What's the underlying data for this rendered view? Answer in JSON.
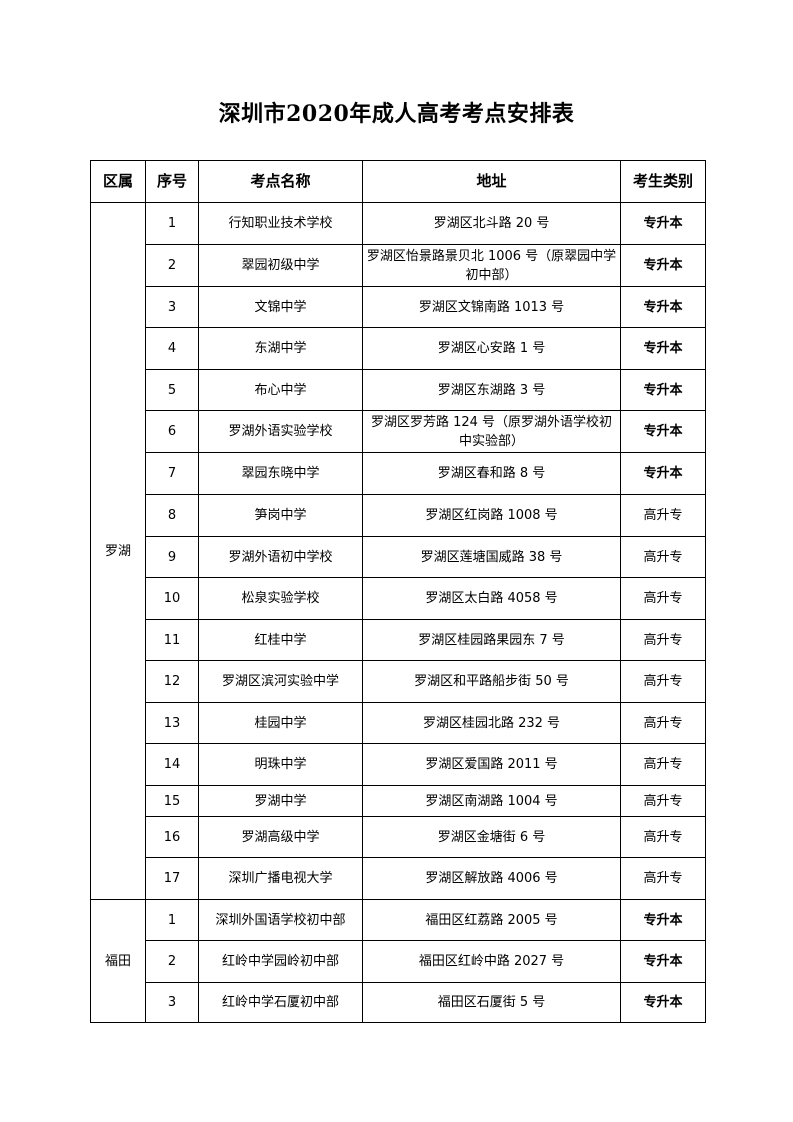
{
  "title": "深圳市2020年成人高考考点安排表",
  "headers": [
    "区属",
    "序号",
    "考点名称",
    "地址",
    "考生类别"
  ],
  "groups": [
    {
      "district": "罗湖",
      "rows": [
        {
          "no": "1",
          "name": "行知职业技术学校",
          "address": "罗湖区北斗路 20 号",
          "category": "专升本"
        },
        {
          "no": "2",
          "name": "翠园初级中学",
          "address": "罗湖区怡景路景贝北 1006 号（原翠园中学初中部）",
          "category": "专升本"
        },
        {
          "no": "3",
          "name": "文锦中学",
          "address": "罗湖区文锦南路 1013 号",
          "category": "专升本"
        },
        {
          "no": "4",
          "name": "东湖中学",
          "address": "罗湖区心安路 1 号",
          "category": "专升本"
        },
        {
          "no": "5",
          "name": "布心中学",
          "address": "罗湖区东湖路 3 号",
          "category": "专升本"
        },
        {
          "no": "6",
          "name": "罗湖外语实验学校",
          "address": "罗湖区罗芳路 124 号（原罗湖外语学校初中实验部）",
          "category": "专升本"
        },
        {
          "no": "7",
          "name": "翠园东晓中学",
          "address": "罗湖区春和路 8 号",
          "category": "专升本"
        },
        {
          "no": "8",
          "name": "笋岗中学",
          "address": "罗湖区红岗路 1008 号",
          "category": "高升专"
        },
        {
          "no": "9",
          "name": "罗湖外语初中学校",
          "address": "罗湖区莲塘国威路 38 号",
          "category": "高升专"
        },
        {
          "no": "10",
          "name": "松泉实验学校",
          "address": "罗湖区太白路 4058 号",
          "category": "高升专"
        },
        {
          "no": "11",
          "name": "红桂中学",
          "address": "罗湖区桂园路果园东 7 号",
          "category": "高升专"
        },
        {
          "no": "12",
          "name": "罗湖区滨河实验中学",
          "address": "罗湖区和平路船步街 50 号",
          "category": "高升专"
        },
        {
          "no": "13",
          "name": "桂园中学",
          "address": "罗湖区桂园北路 232 号",
          "category": "高升专"
        },
        {
          "no": "14",
          "name": "明珠中学",
          "address": "罗湖区爱国路 2011 号",
          "category": "高升专"
        },
        {
          "no": "15",
          "name": "罗湖中学",
          "address": "罗湖区南湖路 1004 号",
          "category": "高升专"
        },
        {
          "no": "16",
          "name": "罗湖高级中学",
          "address": "罗湖区金塘街 6 号",
          "category": "高升专"
        },
        {
          "no": "17",
          "name": "深圳广播电视大学",
          "address": "罗湖区解放路 4006 号",
          "category": "高升专"
        }
      ]
    },
    {
      "district": "福田",
      "rows": [
        {
          "no": "1",
          "name": "深圳外国语学校初中部",
          "address": "福田区红荔路 2005 号",
          "category": "专升本"
        },
        {
          "no": "2",
          "name": "红岭中学园岭初中部",
          "address": "福田区红岭中路 2027 号",
          "category": "专升本"
        },
        {
          "no": "3",
          "name": "红岭中学石厦初中部",
          "address": "福田区石厦街 5 号",
          "category": "专升本"
        }
      ]
    }
  ]
}
